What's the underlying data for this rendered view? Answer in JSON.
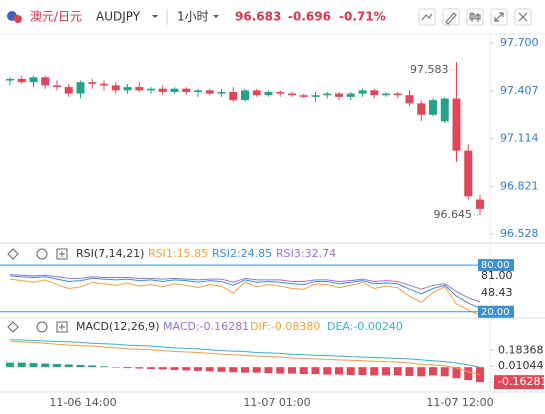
{
  "header": {
    "name": "澳元/日元",
    "code": "AUDJPY",
    "interval": "1小时",
    "price": "96.683",
    "change": "-0.696",
    "change_pct": "-0.71%"
  },
  "chart_data": [
    {
      "type": "candlestick",
      "open": [
        97.47,
        97.48,
        97.46,
        97.49,
        97.44,
        97.43,
        97.39,
        97.46,
        97.45,
        97.44,
        97.41,
        97.43,
        97.41,
        97.42,
        97.4,
        97.42,
        97.4,
        97.41,
        97.39,
        97.4,
        97.35,
        97.41,
        97.38,
        97.4,
        97.39,
        97.38,
        97.37,
        97.38,
        97.39,
        97.37,
        97.39,
        97.41,
        97.38,
        97.39,
        97.38,
        97.33,
        97.26,
        97.22,
        97.36,
        97.04,
        96.74
      ],
      "high": [
        97.49,
        97.5,
        97.5,
        97.5,
        97.47,
        97.45,
        97.47,
        97.48,
        97.47,
        97.46,
        97.45,
        97.46,
        97.43,
        97.44,
        97.43,
        97.43,
        97.42,
        97.42,
        97.42,
        97.43,
        97.42,
        97.42,
        97.41,
        97.41,
        97.4,
        97.39,
        97.4,
        97.4,
        97.4,
        97.4,
        97.42,
        97.42,
        97.4,
        97.4,
        97.41,
        97.35,
        97.36,
        97.37,
        97.583,
        97.08,
        96.77
      ],
      "low": [
        97.44,
        97.45,
        97.43,
        97.42,
        97.41,
        97.37,
        97.36,
        97.42,
        97.41,
        97.39,
        97.39,
        97.4,
        97.39,
        97.38,
        97.39,
        97.38,
        97.37,
        97.38,
        97.37,
        97.34,
        97.34,
        97.37,
        97.37,
        97.37,
        97.37,
        97.36,
        97.34,
        97.36,
        97.35,
        97.35,
        97.37,
        97.36,
        97.37,
        97.36,
        97.31,
        97.22,
        97.25,
        97.21,
        96.97,
        96.74,
        96.645
      ],
      "close": [
        97.48,
        97.46,
        97.49,
        97.44,
        97.43,
        97.39,
        97.46,
        97.45,
        97.44,
        97.41,
        97.43,
        97.41,
        97.42,
        97.4,
        97.42,
        97.4,
        97.41,
        97.39,
        97.4,
        97.35,
        97.41,
        97.38,
        97.4,
        97.39,
        97.38,
        97.37,
        97.38,
        97.39,
        97.37,
        97.39,
        97.41,
        97.38,
        97.39,
        97.38,
        97.33,
        97.26,
        97.35,
        97.36,
        97.04,
        96.76,
        96.683
      ],
      "up_color": "#26a28b",
      "down_color": "#e0475a",
      "high_label": "97.583",
      "low_label": "96.645",
      "ylim": [
        96.48,
        97.78
      ],
      "yticks": [
        {
          "value": 97.7,
          "label": "97.700"
        },
        {
          "value": 97.407,
          "label": "97.407"
        },
        {
          "value": 97.114,
          "label": "97.114"
        },
        {
          "value": 96.821,
          "label": "96.821"
        },
        {
          "value": 96.528,
          "label": "96.528"
        }
      ]
    },
    {
      "type": "line",
      "title": "RSI(7,14,21)",
      "series": [
        {
          "name": "RSI1:15.85",
          "color": "#f0a040",
          "values": [
            62,
            60,
            58,
            61,
            55,
            50,
            52,
            58,
            56,
            54,
            57,
            53,
            55,
            52,
            56,
            54,
            51,
            55,
            53,
            44,
            58,
            52,
            55,
            53,
            50,
            49,
            56,
            55,
            51,
            54,
            58,
            50,
            53,
            51,
            40,
            32,
            45,
            52,
            30,
            22,
            15.85
          ]
        },
        {
          "name": "RSI2:24.85",
          "color": "#3b8fd8",
          "values": [
            66,
            65,
            64,
            65,
            62,
            59,
            60,
            63,
            62,
            61,
            62,
            60,
            61,
            59,
            61,
            60,
            58,
            60,
            59,
            54,
            61,
            58,
            59,
            58,
            56,
            55,
            59,
            59,
            56,
            58,
            60,
            56,
            57,
            56,
            49,
            43,
            50,
            54,
            40,
            31,
            24.85
          ]
        },
        {
          "name": "RSI3:32.74",
          "color": "#a070d0",
          "values": [
            68,
            67,
            66,
            67,
            65,
            63,
            63,
            65,
            64,
            64,
            64,
            63,
            63,
            62,
            63,
            62,
            61,
            62,
            62,
            58,
            63,
            61,
            61,
            61,
            59,
            59,
            61,
            61,
            59,
            60,
            62,
            59,
            60,
            59,
            54,
            49,
            54,
            56,
            46,
            38,
            32.74
          ]
        }
      ],
      "ylim": [
        12,
        84
      ],
      "yticks": [
        {
          "value": 80,
          "label": "80.00"
        },
        {
          "value": 20,
          "label": "20.00"
        }
      ],
      "scale_labels": [
        "81.00",
        "48.43"
      ]
    },
    {
      "type": "macd",
      "title": "MACD(12,26,9)",
      "bars": {
        "name": "MACD:-0.16281",
        "color": "#9a6fd0",
        "up_color": "#26a28b",
        "down_color": "#e0475a",
        "values": [
          0.05,
          0.05,
          0.045,
          0.04,
          0.035,
          0.03,
          0.025,
          0.02,
          0.01,
          -0.005,
          -0.01,
          -0.015,
          -0.02,
          -0.025,
          -0.03,
          -0.035,
          -0.04,
          -0.045,
          -0.05,
          -0.055,
          -0.06,
          -0.06,
          -0.065,
          -0.07,
          -0.07,
          -0.075,
          -0.075,
          -0.08,
          -0.08,
          -0.085,
          -0.085,
          -0.09,
          -0.09,
          -0.09,
          -0.095,
          -0.1,
          -0.09,
          -0.1,
          -0.12,
          -0.14,
          -0.16281
        ]
      },
      "series": [
        {
          "name": "DIF:-0.08380",
          "color": "#f0a040",
          "values": [
            0.28,
            0.275,
            0.27,
            0.26,
            0.25,
            0.24,
            0.235,
            0.23,
            0.22,
            0.21,
            0.2,
            0.195,
            0.19,
            0.18,
            0.17,
            0.165,
            0.16,
            0.15,
            0.14,
            0.135,
            0.13,
            0.12,
            0.115,
            0.11,
            0.1,
            0.095,
            0.09,
            0.085,
            0.08,
            0.075,
            0.07,
            0.065,
            0.06,
            0.055,
            0.045,
            0.03,
            0.025,
            0.015,
            -0.01,
            -0.05,
            -0.0838
          ]
        },
        {
          "name": "DEA:-0.00240",
          "color": "#3bb0d0",
          "values": [
            0.3,
            0.295,
            0.29,
            0.285,
            0.28,
            0.275,
            0.27,
            0.26,
            0.255,
            0.25,
            0.24,
            0.235,
            0.23,
            0.22,
            0.21,
            0.205,
            0.2,
            0.19,
            0.18,
            0.175,
            0.17,
            0.16,
            0.155,
            0.15,
            0.14,
            0.135,
            0.13,
            0.125,
            0.12,
            0.115,
            0.11,
            0.105,
            0.1,
            0.095,
            0.09,
            0.08,
            0.07,
            0.06,
            0.045,
            0.025,
            -0.0024
          ]
        }
      ],
      "ylim": [
        -0.27,
        0.35
      ],
      "yticks": [
        0.18368,
        0.01044,
        -0.16281
      ],
      "x_labels": [
        "11-06 14:00",
        "11-07 01:00",
        "11-07 12:00"
      ]
    }
  ]
}
